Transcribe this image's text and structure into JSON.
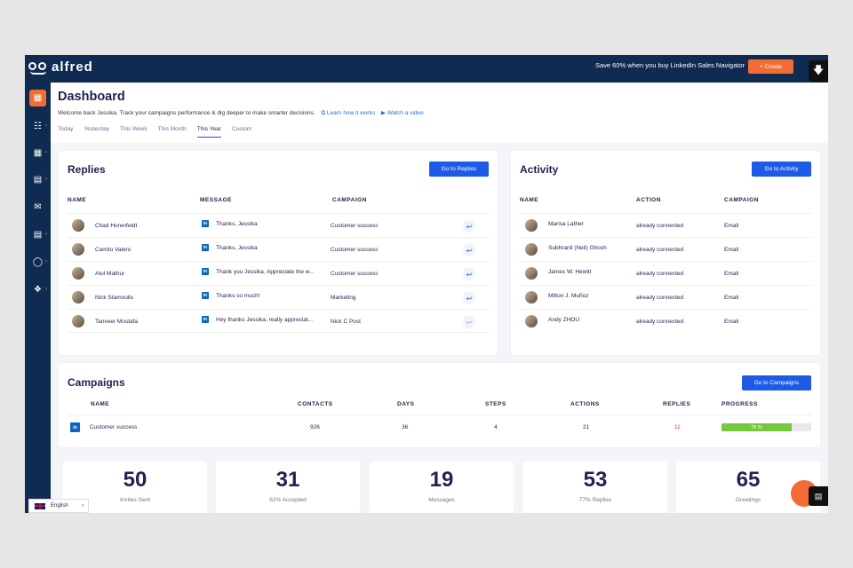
{
  "topbar": {
    "logo_text": "alfred",
    "promo": "Save 60% when you buy LinkedIn Sales Navigator",
    "create_label": "+ Create"
  },
  "header": {
    "title": "Dashboard",
    "subtitle": "Welcome back Jessika. Track your campaigns performance & dig deeper to make smarter decisions.",
    "learn_link": "Learn how it works",
    "video_link": "Watch a video",
    "tabs": [
      "Today",
      "Yesterday",
      "This Week",
      "This Month",
      "This Year",
      "Custom"
    ],
    "active_tab": "This Year"
  },
  "replies": {
    "title": "Replies",
    "button": "Go to Replies",
    "columns": [
      "NAME",
      "MESSAGE",
      "CAMPAIGN"
    ],
    "rows": [
      {
        "name": "Chad Horenfeldt",
        "message": "Thanks, Jessika",
        "campaign": "Customer success"
      },
      {
        "name": "Camilo Valero",
        "message": "Thanks, Jessika",
        "campaign": "Customer success"
      },
      {
        "name": "Atul Mathur",
        "message": "Thank you Jessika. Appreciate the w...",
        "campaign": "Customer success"
      },
      {
        "name": "Nick Stamoulis",
        "message": "Thanks so much!",
        "campaign": "Marketing"
      },
      {
        "name": "Tanveer Mostafa",
        "message": "Hey thanks Jessika, really appreciat...",
        "campaign": "Nick C Post"
      }
    ]
  },
  "activity": {
    "title": "Activity",
    "button": "Go to Activity",
    "columns": [
      "NAME",
      "ACTION",
      "CAMPAIGN"
    ],
    "rows": [
      {
        "name": "Marisa Lather",
        "action": "already connected",
        "campaign": "Email"
      },
      {
        "name": "Subhranil (Neil) Ghosh",
        "action": "already connected",
        "campaign": "Email"
      },
      {
        "name": "James W. Hewitt",
        "action": "already connected",
        "campaign": "Email"
      },
      {
        "name": "Milton J. Muñoz",
        "action": "already connected",
        "campaign": "Email"
      },
      {
        "name": "Andy ZHOU",
        "action": "already connected",
        "campaign": "Email"
      }
    ]
  },
  "campaigns": {
    "title": "Campaigns",
    "button": "Go to Campaigns",
    "columns": {
      "name": "NAME",
      "contacts": "CONTACTS",
      "days": "DAYS",
      "steps": "STEPS",
      "actions": "ACTIONS",
      "replies": "REPLIES",
      "progress": "PROGRESS"
    },
    "row": {
      "name": "Customer success",
      "contacts": "926",
      "days": "36",
      "steps": "4",
      "actions": "21",
      "replies": "11",
      "progress_label": "78 %",
      "progress": 0.78
    }
  },
  "stats": [
    {
      "value": "50",
      "label": "Invites Sent"
    },
    {
      "value": "31",
      "label": "62% Accepted"
    },
    {
      "value": "19",
      "label": "Messages"
    },
    {
      "value": "53",
      "label": "77% Replies"
    },
    {
      "value": "65",
      "label": "Greetings"
    }
  ],
  "language": "English",
  "colors": {
    "navy": "#0f2b52",
    "accent": "#f26d36",
    "primary": "#1d5be6",
    "replies_count": "#e23b3b",
    "progress": "#74c83c"
  }
}
